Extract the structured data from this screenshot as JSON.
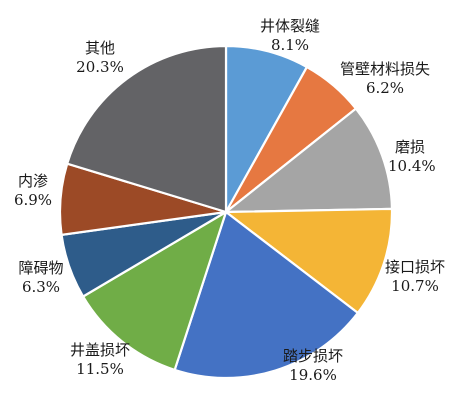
{
  "chart_data": {
    "type": "pie",
    "title": "",
    "legend": "none",
    "grid": false,
    "slices": [
      {
        "label": "井体裂缝",
        "value": 8.1,
        "display": "8.1%",
        "color": "#5b9bd5"
      },
      {
        "label": "管壁材料损失",
        "value": 6.2,
        "display": "6.2%",
        "color": "#e67841"
      },
      {
        "label": "磨损",
        "value": 10.4,
        "display": "10.4%",
        "color": "#a5a5a5"
      },
      {
        "label": "接口损坏",
        "value": 10.7,
        "display": "10.7%",
        "color": "#f4b536"
      },
      {
        "label": "踏步损坏",
        "value": 19.6,
        "display": "19.6%",
        "color": "#4472c4"
      },
      {
        "label": "井盖损坏",
        "value": 11.5,
        "display": "11.5%",
        "color": "#70ad47"
      },
      {
        "label": "障碍物",
        "value": 6.3,
        "display": "6.3%",
        "color": "#2e5c8a"
      },
      {
        "label": "内渗",
        "value": 6.9,
        "display": "6.9%",
        "color": "#9c4a26"
      },
      {
        "label": "其他",
        "value": 20.3,
        "display": "20.3%",
        "color": "#636366"
      }
    ]
  }
}
